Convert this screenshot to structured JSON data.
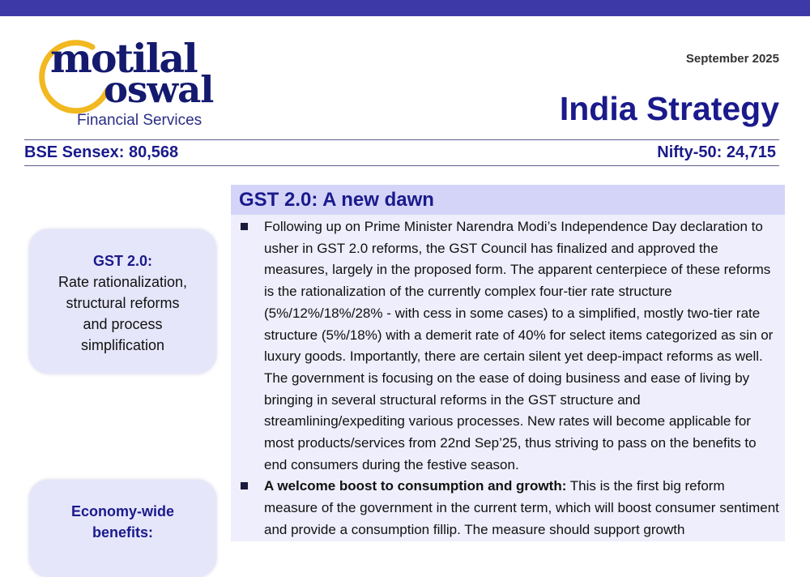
{
  "header": {
    "logo": {
      "line1": "motilal",
      "line2": "oswal",
      "line3": "Financial Services",
      "ring_color": "#f2b820"
    },
    "date": "September 2025",
    "title": "India Strategy",
    "bse": "BSE Sensex: 80,568",
    "nifty": "Nifty-50: 24,715"
  },
  "sidebar": {
    "box1": {
      "title": "GST 2.0:",
      "lines": [
        "Rate rationalization,",
        "structural reforms",
        "and process",
        "simplification"
      ]
    },
    "box2": {
      "title": "Economy-wide",
      "line2": "benefits:"
    }
  },
  "main": {
    "heading": "GST 2.0: A new dawn",
    "bullet1": "Following up on Prime Minister Narendra Modi’s Independence Day declaration to usher in GST 2.0 reforms, the GST Council has finalized and approved the measures, largely in the proposed form. The apparent centerpiece of these reforms is the rationalization of the currently complex four-tier rate structure (5%/12%/18%/28% - with cess in some cases) to a simplified, mostly two-tier rate structure (5%/18%) with a demerit rate of 40% for select items categorized as sin or luxury goods. Importantly, there are certain silent yet deep-impact reforms as well. The government is focusing on the ease of doing business and ease of living by bringing in several structural reforms in the GST structure and streamlining/expediting various processes. New rates will become applicable for most products/services from 22nd Sep’25, thus striving to pass on the benefits to end consumers during the festive season.",
    "bullet2_lead": "A welcome boost to consumption and growth:",
    "bullet2_text": " This is the first big reform measure of the government in the current term, which will boost consumer sentiment and provide a consumption fillip. The measure should support growth"
  },
  "colors": {
    "top_bar": "#3d3aa8",
    "brand_navy": "#1a1a8c",
    "heading_bg": "#d4d4f8",
    "panel_bg": "#eeeefc",
    "sidebar_bg": "#e6e6fb"
  }
}
